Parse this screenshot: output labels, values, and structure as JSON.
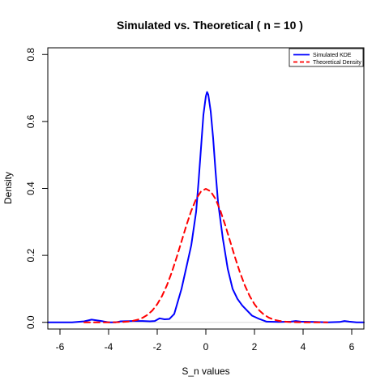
{
  "chart_data": {
    "type": "line",
    "title": "Simulated vs. Theoretical ( n = 10 )",
    "xlabel": "S_n values",
    "ylabel": "Density",
    "xlim": [
      -6.5,
      6.5
    ],
    "ylim": [
      -0.02,
      0.82
    ],
    "x_ticks": [
      -6,
      -4,
      -2,
      0,
      2,
      4,
      6
    ],
    "y_ticks": [
      0.0,
      0.2,
      0.4,
      0.6,
      0.8
    ],
    "x_tick_labels": [
      "-6",
      "-4",
      "-2",
      "0",
      "2",
      "4",
      "6"
    ],
    "y_tick_labels": [
      "0.0",
      "0.2",
      "0.4",
      "0.6",
      "0.8"
    ],
    "legend_position": "top-right",
    "colors": {
      "kde": "#0000ff",
      "theory": "#ff0000",
      "zero_line": "#d9d9d9"
    },
    "series": [
      {
        "name": "Simulated KDE",
        "style": "solid",
        "x": [
          -6.5,
          -5.5,
          -5.0,
          -4.7,
          -4.3,
          -4.0,
          -3.7,
          -3.5,
          -3.0,
          -2.6,
          -2.3,
          -2.1,
          -1.9,
          -1.7,
          -1.5,
          -1.3,
          -1.0,
          -0.8,
          -0.6,
          -0.4,
          -0.3,
          -0.2,
          -0.1,
          0.0,
          0.05,
          0.1,
          0.2,
          0.3,
          0.4,
          0.5,
          0.7,
          0.9,
          1.1,
          1.3,
          1.5,
          1.7,
          1.9,
          2.2,
          2.5,
          3.0,
          3.5,
          3.7,
          3.9,
          4.5,
          5.0,
          5.5,
          5.7,
          5.9,
          6.2,
          6.5
        ],
        "y": [
          0.0,
          0.0,
          0.003,
          0.008,
          0.004,
          0.0,
          0.0,
          0.003,
          0.004,
          0.004,
          0.003,
          0.004,
          0.012,
          0.009,
          0.01,
          0.025,
          0.1,
          0.165,
          0.23,
          0.33,
          0.42,
          0.52,
          0.62,
          0.675,
          0.688,
          0.68,
          0.63,
          0.55,
          0.45,
          0.36,
          0.25,
          0.16,
          0.1,
          0.07,
          0.05,
          0.035,
          0.02,
          0.01,
          0.002,
          0.001,
          0.002,
          0.004,
          0.002,
          0.001,
          0.0,
          0.001,
          0.004,
          0.002,
          0.0,
          0.0
        ]
      },
      {
        "name": "Theoretical Density",
        "style": "dashed",
        "x": [
          -5.0,
          -4.8,
          -4.6,
          -4.4,
          -4.2,
          -4.0,
          -3.8,
          -3.6,
          -3.4,
          -3.2,
          -3.0,
          -2.8,
          -2.6,
          -2.4,
          -2.2,
          -2.0,
          -1.8,
          -1.6,
          -1.4,
          -1.2,
          -1.0,
          -0.8,
          -0.6,
          -0.4,
          -0.2,
          0.0,
          0.2,
          0.4,
          0.6,
          0.8,
          1.0,
          1.2,
          1.4,
          1.6,
          1.8,
          2.0,
          2.2,
          2.4,
          2.6,
          2.8,
          3.0,
          3.2,
          3.4,
          3.6,
          3.8,
          4.0,
          4.2,
          4.4,
          4.6,
          4.8,
          5.0
        ],
        "y": [
          0.0,
          0.0,
          0.0,
          0.0,
          0.0001,
          0.0001,
          0.0003,
          0.0006,
          0.0012,
          0.0024,
          0.0044,
          0.0079,
          0.0136,
          0.0224,
          0.0355,
          0.054,
          0.079,
          0.1109,
          0.1497,
          0.1942,
          0.242,
          0.2897,
          0.3332,
          0.3683,
          0.391,
          0.3989,
          0.391,
          0.3683,
          0.3332,
          0.2897,
          0.242,
          0.1942,
          0.1497,
          0.1109,
          0.079,
          0.054,
          0.0355,
          0.0224,
          0.0136,
          0.0079,
          0.0044,
          0.0024,
          0.0012,
          0.0006,
          0.0003,
          0.0001,
          0.0001,
          0.0,
          0.0,
          0.0,
          0.0
        ]
      }
    ]
  }
}
